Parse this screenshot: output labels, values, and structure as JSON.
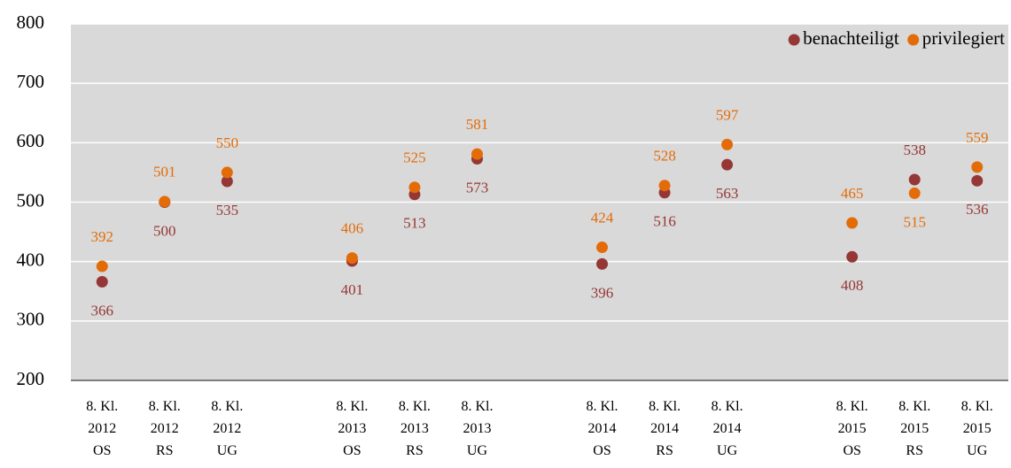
{
  "chart_data": {
    "type": "scatter",
    "categories": [
      "8. Kl.\n2012\nOS",
      "8. Kl.\n2012\nRS",
      "8. Kl.\n2012\nUG",
      null,
      "8. Kl.\n2013\nOS",
      "8. Kl.\n2013\nRS",
      "8. Kl.\n2013\nUG",
      null,
      "8. Kl.\n2014\nOS",
      "8. Kl.\n2014\nRS",
      "8. Kl.\n2014\nUG",
      null,
      "8. Kl.\n2015\nOS",
      "8. Kl.\n2015\nRS",
      "8. Kl.\n2015\nUG"
    ],
    "series": [
      {
        "name": "benachteiligt",
        "color": "#953735",
        "values": [
          366,
          500,
          535,
          null,
          401,
          513,
          573,
          null,
          396,
          516,
          563,
          null,
          408,
          538,
          536
        ]
      },
      {
        "name": "privilegiert",
        "color": "#e36c09",
        "values": [
          392,
          501,
          550,
          null,
          406,
          525,
          581,
          null,
          424,
          528,
          597,
          null,
          465,
          515,
          559
        ]
      }
    ],
    "ylim": [
      200,
      800
    ],
    "yticks": [
      200,
      300,
      400,
      500,
      600,
      700,
      800
    ],
    "grid": true,
    "legend": "top-right"
  }
}
